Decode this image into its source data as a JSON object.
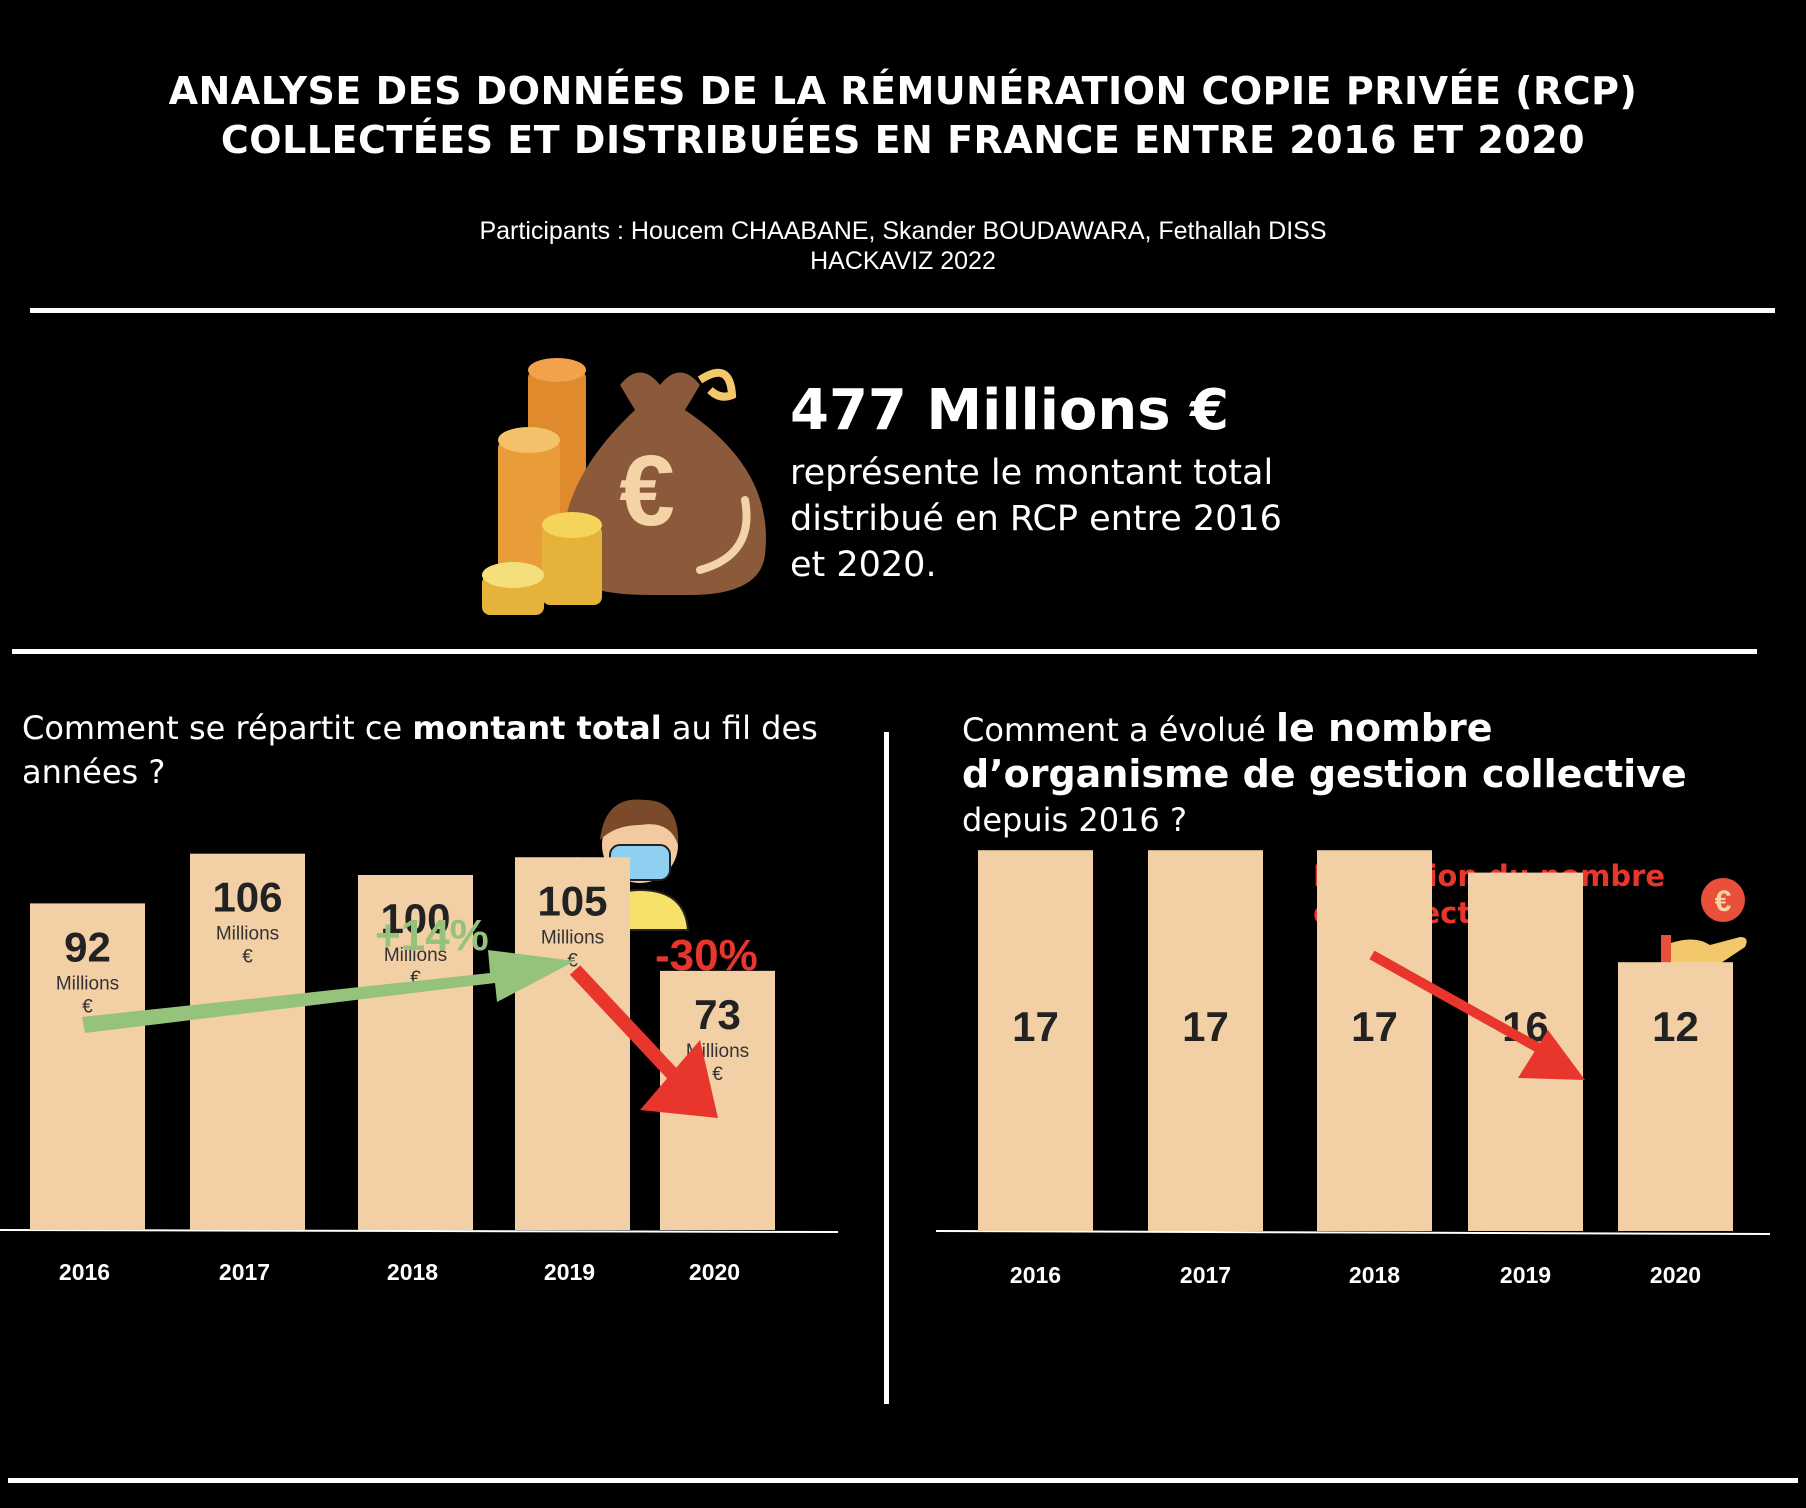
{
  "header": {
    "title_line1": "ANALYSE DES DONNÉES DE LA RÉMUNÉRATION COPIE PRIVÉE (RCP)",
    "title_line2": "COLLECTÉES ET DISTRIBUÉES EN FRANCE ENTRE 2016 ET 2020",
    "participants": "Participants : Houcem CHAABANE, Skander BOUDAWARA, Fethallah DISS",
    "event": "HACKAVIZ 2022"
  },
  "summary": {
    "amount": "477 Millions €",
    "description": "représente le montant total distribué en RCP entre 2016 et 2020.",
    "money_bag_symbol": "€"
  },
  "left_panel": {
    "question_before": "Comment se répartit ce ",
    "question_bold": "montant total",
    "question_after": " au fil des années ?",
    "increase_label": "+14%",
    "decrease_label": "-30%"
  },
  "right_panel": {
    "question_before": "Comment a évolué ",
    "question_bold": "le nombre d’organisme de gestion collective",
    "question_after": "depuis 2016  ?",
    "note": "Réduction du nombre de collecteurs",
    "coin_symbol": "€"
  },
  "colors": {
    "background": "#000000",
    "bar": "#f2cfa5",
    "green_arrow": "#96c37c",
    "red_arrow": "#e8362c",
    "text": "#ffffff"
  },
  "chart_data": [
    {
      "type": "bar",
      "categories": [
        "2016",
        "2017",
        "2018",
        "2019",
        "2020"
      ],
      "values": [
        92,
        106,
        100,
        105,
        73
      ],
      "value_labels": [
        "92",
        "106",
        "100",
        "105",
        "73"
      ],
      "unit_line1": "Millions",
      "unit_line2": "€",
      "ylim": [
        0,
        118
      ]
    },
    {
      "type": "bar",
      "categories": [
        "2016",
        "2017",
        "2018",
        "2019",
        "2020"
      ],
      "values": [
        17,
        17,
        17,
        16,
        12
      ],
      "value_labels": [
        "17",
        "17",
        "17",
        "16",
        "12"
      ],
      "ylim": [
        0,
        22
      ]
    }
  ]
}
